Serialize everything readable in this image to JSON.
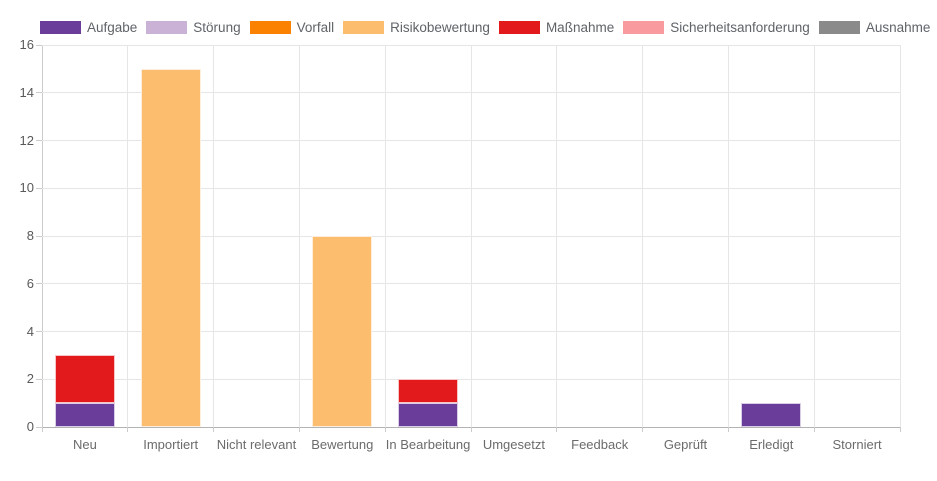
{
  "page": {
    "background": "#ffffff",
    "text_color": "#5f6368",
    "grid_color": "#e6e6e6",
    "axis_color": "#b3b3b3"
  },
  "chart_data": {
    "type": "bar",
    "stacked": true,
    "title": "",
    "xlabel": "",
    "ylabel": "",
    "legend_position": "top",
    "grid": true,
    "ylim": [
      0,
      16
    ],
    "ytick_step": 2,
    "ytick_labels": [
      "0",
      "2",
      "4",
      "6",
      "8",
      "10",
      "12",
      "14",
      "16"
    ],
    "categories": [
      "Neu",
      "Importiert",
      "Nicht relevant",
      "Bewertung",
      "In Bearbeitung",
      "Umgesetzt",
      "Feedback",
      "Geprüft",
      "Erledigt",
      "Storniert"
    ],
    "series": [
      {
        "name": "Aufgabe",
        "color": "#6a3d9a",
        "values": [
          1,
          0,
          0,
          0,
          1,
          0,
          0,
          0,
          1,
          0
        ]
      },
      {
        "name": "Störung",
        "color": "#cab2d6",
        "values": [
          0,
          0,
          0,
          0,
          0,
          0,
          0,
          0,
          0,
          0
        ]
      },
      {
        "name": "Vorfall",
        "color": "#fb8200",
        "values": [
          0,
          0,
          0,
          0,
          0,
          0,
          0,
          0,
          0,
          0
        ]
      },
      {
        "name": "Risikobewertung",
        "color": "#fcbd6f",
        "values": [
          0,
          15,
          0,
          8,
          0,
          0,
          0,
          0,
          0,
          0
        ]
      },
      {
        "name": "Maßnahme",
        "color": "#e31a1c",
        "values": [
          2,
          0,
          0,
          0,
          1,
          0,
          0,
          0,
          0,
          0
        ]
      },
      {
        "name": "Sicherheitsanforderung",
        "color": "#f99b9e",
        "values": [
          0,
          0,
          0,
          0,
          0,
          0,
          0,
          0,
          0,
          0
        ]
      },
      {
        "name": "Ausnahme",
        "color": "#8a8a8a",
        "values": [
          0,
          0,
          0,
          0,
          0,
          0,
          0,
          0,
          0,
          0
        ]
      }
    ]
  }
}
